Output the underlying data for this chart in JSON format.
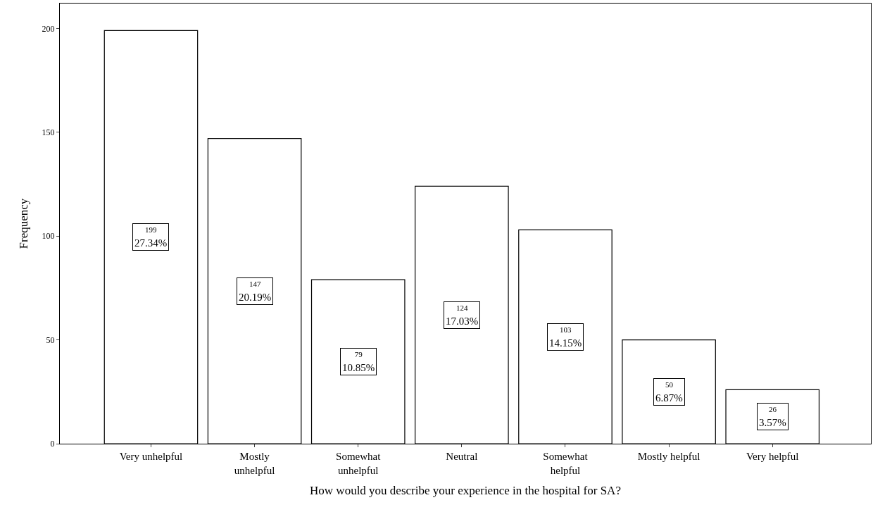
{
  "chart_data": {
    "type": "bar",
    "xlabel": "How would you describe your experience in the hospital for SA?",
    "ylabel": "Frequency",
    "categories": [
      "Very unhelpful",
      "Mostly\nunhelpful",
      "Somewhat\nunhelpful",
      "Neutral",
      "Somewhat\nhelpful",
      "Mostly helpful",
      "Very helpful"
    ],
    "values": [
      199,
      147,
      79,
      124,
      103,
      50,
      26
    ],
    "value_labels": [
      "199\n27.34%",
      "147\n20.19%",
      "79\n10.85%",
      "124\n17.03%",
      "103\n14.15%",
      "50\n6.87%",
      "26\n3.57%"
    ],
    "color": "#ffffff",
    "ylim": [
      0,
      212
    ],
    "yticks": [
      0,
      50,
      100,
      150,
      200
    ]
  }
}
